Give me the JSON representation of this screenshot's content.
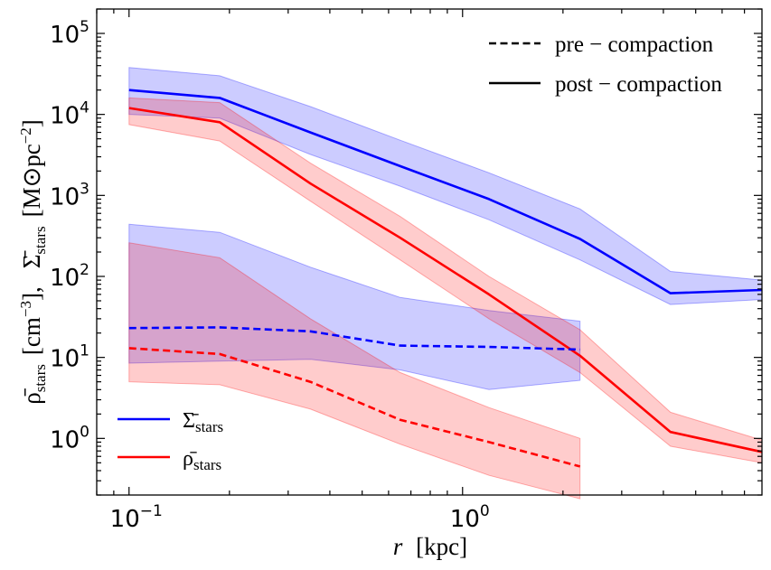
{
  "chart_data": {
    "type": "line",
    "xscale": "log",
    "yscale": "log",
    "xlim": [
      0.08,
      7.9
    ],
    "ylim": [
      0.2,
      200000
    ],
    "xlabel": {
      "italic": "r",
      "rest": "[kpc]"
    },
    "ylabel": {
      "rho": "ρ̄",
      "rho_sub": "stars",
      "rho_units": "[cm",
      "rho_units_sup": "−3",
      "rho_units_close": "],",
      "sigma": "Σ̄",
      "sigma_sub": "stars",
      "sigma_units": "[M⊙pc",
      "sigma_units_sup": "−2",
      "sigma_units_close": "]"
    },
    "x_ticks": [
      {
        "value": 0.1,
        "base": "10",
        "exp": "−1"
      },
      {
        "value": 1,
        "base": "10",
        "exp": "0"
      }
    ],
    "y_ticks": [
      {
        "value": 1,
        "base": "10",
        "exp": "0"
      },
      {
        "value": 10,
        "base": "10",
        "exp": "1"
      },
      {
        "value": 100,
        "base": "10",
        "exp": "2"
      },
      {
        "value": 1000,
        "base": "10",
        "exp": "3"
      },
      {
        "value": 10000,
        "base": "10",
        "exp": "4"
      },
      {
        "value": 100000,
        "base": "10",
        "exp": "5"
      }
    ],
    "series": [
      {
        "name": "sigma_post",
        "color": "#0000ff",
        "style": "solid",
        "x": [
          0.1,
          0.187,
          0.35,
          0.65,
          1.2,
          2.25,
          4.2,
          7.9
        ],
        "y": [
          20000,
          16000,
          6000,
          2300,
          900,
          290,
          62,
          68
        ],
        "band_upper": [
          38000,
          30000,
          12500,
          4800,
          1900,
          680,
          115,
          90
        ],
        "band_lower": [
          10000,
          9000,
          3200,
          1300,
          500,
          160,
          45,
          52
        ]
      },
      {
        "name": "rho_post",
        "color": "#ff0000",
        "style": "solid",
        "x": [
          0.1,
          0.187,
          0.35,
          0.65,
          1.2,
          2.25,
          4.2,
          7.9
        ],
        "y": [
          12000,
          8000,
          1400,
          300,
          60,
          10.5,
          1.2,
          0.68
        ],
        "band_upper": [
          16000,
          14000,
          2500,
          550,
          100,
          22,
          2.1,
          0.95
        ],
        "band_lower": [
          7500,
          4700,
          850,
          160,
          30,
          6.5,
          0.8,
          0.5
        ]
      },
      {
        "name": "sigma_pre",
        "color": "#0000ff",
        "style": "dashed",
        "x": [
          0.1,
          0.187,
          0.35,
          0.65,
          1.2,
          2.25
        ],
        "y": [
          23,
          23.5,
          21,
          14,
          13.5,
          12.5
        ],
        "band_upper": [
          440,
          350,
          130,
          55,
          38,
          28
        ],
        "band_lower": [
          8.5,
          9,
          9.5,
          7,
          4,
          5.2
        ]
      },
      {
        "name": "rho_pre",
        "color": "#ff0000",
        "style": "dashed",
        "x": [
          0.1,
          0.187,
          0.35,
          0.65,
          1.2,
          2.25
        ],
        "y": [
          13,
          11,
          5,
          1.7,
          0.9,
          0.45
        ],
        "band_upper": [
          260,
          170,
          30,
          6.5,
          2.4,
          1.0
        ],
        "band_lower": [
          5,
          4.6,
          2.3,
          0.85,
          0.35,
          0.18
        ]
      }
    ],
    "legend_style": {
      "position": "top-right",
      "entries": [
        {
          "label": "pre − compaction",
          "style": "dashed",
          "color": "#000000"
        },
        {
          "label": "post − compaction",
          "style": "solid",
          "color": "#000000"
        }
      ]
    },
    "legend_quantity": {
      "position": "bottom-left",
      "entries": [
        {
          "symbol": "Σ̄",
          "sub": "stars",
          "color": "#0000ff"
        },
        {
          "symbol": "ρ̄",
          "sub": "stars",
          "color": "#ff0000"
        }
      ]
    }
  }
}
